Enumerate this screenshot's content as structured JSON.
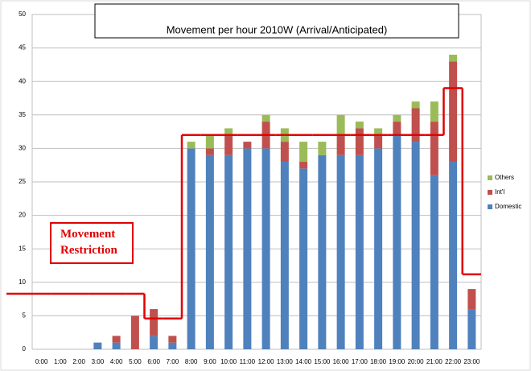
{
  "chart_data": {
    "type": "bar",
    "stacked": true,
    "title": "Movement per hour 2010W (Arrival/Anticipated)",
    "categories": [
      "0:00",
      "1:00",
      "2:00",
      "3:00",
      "4:00",
      "5:00",
      "6:00",
      "7:00",
      "8:00",
      "9:00",
      "10:00",
      "11:00",
      "12:00",
      "13:00",
      "14:00",
      "15:00",
      "16:00",
      "17:00",
      "18:00",
      "19:00",
      "20:00",
      "21:00",
      "22:00",
      "23:00"
    ],
    "series": [
      {
        "name": "Domestic",
        "color": "#4f81bd",
        "values": [
          0,
          0,
          0,
          1,
          1,
          0,
          2,
          1,
          30,
          29,
          29,
          30,
          30,
          28,
          27,
          29,
          29,
          29,
          30,
          32,
          31,
          26,
          28,
          6
        ]
      },
      {
        "name": "Int'l",
        "color": "#c0504d",
        "values": [
          0,
          0,
          0,
          0,
          1,
          5,
          4,
          1,
          0,
          1,
          3,
          1,
          4,
          3,
          1,
          0,
          3,
          4,
          2,
          2,
          5,
          8,
          15,
          3
        ]
      },
      {
        "name": "Others",
        "color": "#9bbb59",
        "values": [
          0,
          0,
          0,
          0,
          0,
          0,
          0,
          0,
          1,
          2,
          1,
          0,
          1,
          2,
          3,
          2,
          3,
          1,
          1,
          1,
          1,
          3,
          1,
          0
        ]
      }
    ],
    "restriction": {
      "color": "#e00000",
      "values": [
        8.3,
        8.3,
        8.3,
        8.3,
        8.3,
        8.3,
        4.6,
        4.6,
        32,
        32,
        32,
        32,
        32,
        32,
        32,
        32,
        32,
        32,
        32,
        32,
        32,
        32,
        39,
        11.2
      ]
    },
    "annotation": "Movement Restriction",
    "ylim": [
      0,
      50
    ],
    "yticks": [
      0,
      5,
      10,
      15,
      20,
      25,
      30,
      35,
      40,
      45,
      50
    ],
    "grid": true,
    "legend": "right"
  }
}
